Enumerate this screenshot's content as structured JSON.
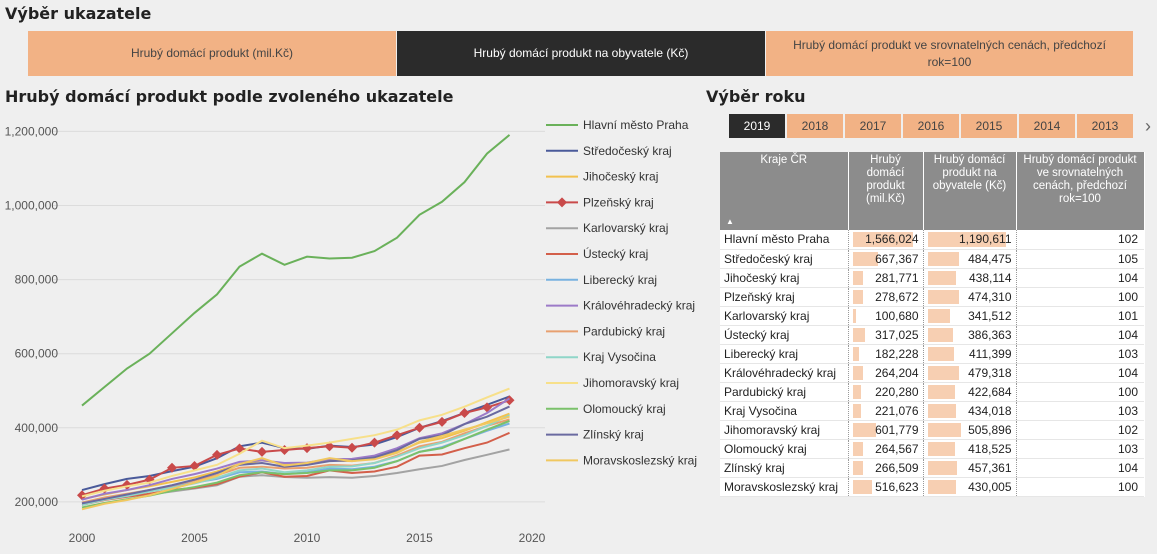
{
  "selector": {
    "title": "Výběr ukazatele",
    "buttons": [
      {
        "label": "Hrubý domácí produkt (mil.Kč)",
        "active": false
      },
      {
        "label": "Hrubý domácí produkt na obyvatele (Kč)",
        "active": true
      },
      {
        "label": "Hrubý domácí produkt ve srovnatelných cenách, předchozí rok=100",
        "active": false
      }
    ]
  },
  "chart_title": "Hrubý domácí produkt podle zvoleného ukazatele",
  "chart_data": {
    "type": "line",
    "x": [
      2000,
      2001,
      2002,
      2003,
      2004,
      2005,
      2006,
      2007,
      2008,
      2009,
      2010,
      2011,
      2012,
      2013,
      2014,
      2015,
      2016,
      2017,
      2018,
      2019
    ],
    "xlim": [
      2000,
      2020
    ],
    "xticks": [
      "2000",
      "2005",
      "2010",
      "2015",
      "2020"
    ],
    "ylim": [
      170000,
      1220000
    ],
    "yticks": [
      "200,000",
      "400,000",
      "600,000",
      "800,000",
      "1,000,000",
      "1,200,000"
    ],
    "ytick_values": [
      200000,
      400000,
      600000,
      800000,
      1000000,
      1200000
    ],
    "legend_position": "right",
    "series": [
      {
        "name": "Hlavní město Praha",
        "color": "#6ab15a",
        "values": [
          460000,
          510000,
          560000,
          600000,
          655000,
          710000,
          760000,
          835000,
          870000,
          840000,
          862000,
          857000,
          859000,
          877000,
          913000,
          975000,
          1010000,
          1063000,
          1140000,
          1190611
        ]
      },
      {
        "name": "Středočeský kraj",
        "color": "#4a5a9a",
        "values": [
          232000,
          248000,
          262000,
          270000,
          283000,
          295000,
          318000,
          350000,
          360000,
          345000,
          343000,
          352000,
          348000,
          355000,
          375000,
          400000,
          418000,
          440000,
          462000,
          484475
        ]
      },
      {
        "name": "Jihočeský kraj",
        "color": "#f2c14e",
        "values": [
          208000,
          220000,
          232000,
          242000,
          254000,
          266000,
          282000,
          302000,
          312000,
          303000,
          304000,
          312000,
          310000,
          318000,
          335000,
          360000,
          372000,
          392000,
          415000,
          438114
        ]
      },
      {
        "name": "Plzeňský kraj",
        "color": "#c94a4a",
        "marker": true,
        "values": [
          218000,
          236000,
          246000,
          260000,
          292000,
          297000,
          327000,
          344000,
          335000,
          340000,
          345000,
          350000,
          346000,
          360000,
          380000,
          400000,
          416000,
          440000,
          455000,
          474310
        ]
      },
      {
        "name": "Karlovarský kraj",
        "color": "#a3a3a3",
        "values": [
          198000,
          208000,
          215000,
          220000,
          228000,
          236000,
          245000,
          268000,
          272000,
          267000,
          265000,
          267000,
          265000,
          270000,
          278000,
          288000,
          297000,
          313000,
          327000,
          341512
        ]
      },
      {
        "name": "Ústecký kraj",
        "color": "#d35f4a",
        "values": [
          192000,
          205000,
          214000,
          222000,
          232000,
          238000,
          248000,
          268000,
          280000,
          268000,
          270000,
          285000,
          278000,
          282000,
          295000,
          325000,
          328000,
          345000,
          360000,
          386363
        ]
      },
      {
        "name": "Liberecký kraj",
        "color": "#78b2e0",
        "values": [
          198000,
          210000,
          220000,
          230000,
          240000,
          252000,
          262000,
          280000,
          282000,
          275000,
          280000,
          290000,
          288000,
          295000,
          310000,
          335000,
          348000,
          370000,
          392000,
          411399
        ]
      },
      {
        "name": "Královéhradecký kraj",
        "color": "#9c7ac8",
        "values": [
          206000,
          222000,
          232000,
          245000,
          262000,
          275000,
          290000,
          308000,
          312000,
          305000,
          306000,
          315000,
          316000,
          325000,
          345000,
          372000,
          385000,
          410000,
          440000,
          479318
        ]
      },
      {
        "name": "Pardubický kraj",
        "color": "#e8a070",
        "values": [
          198000,
          212000,
          222000,
          232000,
          244000,
          258000,
          272000,
          292000,
          295000,
          290000,
          292000,
          300000,
          298000,
          305000,
          325000,
          350000,
          362000,
          385000,
          405000,
          422684
        ]
      },
      {
        "name": "Kraj Vysočina",
        "color": "#8fd6c8",
        "values": [
          192000,
          206000,
          216000,
          228000,
          238000,
          250000,
          265000,
          285000,
          290000,
          280000,
          285000,
          295000,
          296000,
          305000,
          322000,
          345000,
          360000,
          380000,
          405000,
          434018
        ]
      },
      {
        "name": "Jihomoravský kraj",
        "color": "#f7e08a",
        "values": [
          215000,
          230000,
          242000,
          252000,
          270000,
          285000,
          300000,
          330000,
          365000,
          345000,
          352000,
          360000,
          370000,
          380000,
          395000,
          420000,
          435000,
          457000,
          482000,
          505896
        ]
      },
      {
        "name": "Olomoucký kraj",
        "color": "#7ac16a",
        "values": [
          185000,
          197000,
          207000,
          217000,
          230000,
          240000,
          252000,
          272000,
          280000,
          275000,
          278000,
          285000,
          285000,
          292000,
          310000,
          335000,
          345000,
          370000,
          395000,
          418525
        ]
      },
      {
        "name": "Zlínský kraj",
        "color": "#6a6aa0",
        "values": [
          196000,
          208000,
          220000,
          232000,
          245000,
          260000,
          278000,
          300000,
          305000,
          295000,
          300000,
          310000,
          312000,
          320000,
          340000,
          370000,
          380000,
          410000,
          430000,
          457361
        ]
      },
      {
        "name": "Moravskoslezský kraj",
        "color": "#f0c860",
        "values": [
          180000,
          195000,
          205000,
          218000,
          235000,
          252000,
          270000,
          302000,
          318000,
          298000,
          305000,
          318000,
          310000,
          315000,
          332000,
          362000,
          378000,
          395000,
          412000,
          430005
        ]
      }
    ]
  },
  "year_selector": {
    "title": "Výběr roku",
    "years": [
      {
        "label": "2019",
        "active": true
      },
      {
        "label": "2018",
        "active": false
      },
      {
        "label": "2017",
        "active": false
      },
      {
        "label": "2016",
        "active": false
      },
      {
        "label": "2015",
        "active": false
      },
      {
        "label": "2014",
        "active": false
      },
      {
        "label": "2013",
        "active": false
      }
    ],
    "next_icon": "›"
  },
  "table": {
    "headers": [
      "Kraje ČR",
      "Hrubý domácí produkt (mil.Kč)",
      "Hrubý domácí produkt na obyvatele (Kč)",
      "Hrubý domácí produkt ve srovnatelných cenách, předchozí rok=100"
    ],
    "sort_icon": "▲",
    "max_gdp": 1566024,
    "max_gdp_pc": 1190611,
    "rows": [
      {
        "region": "Hlavní město Praha",
        "gdp": "1,566,024",
        "gdp_v": 1566024,
        "gdp_pc": "1,190,611",
        "gdp_pc_v": 1190611,
        "idx": "102"
      },
      {
        "region": "Středočeský kraj",
        "gdp": "667,367",
        "gdp_v": 667367,
        "gdp_pc": "484,475",
        "gdp_pc_v": 484475,
        "idx": "105"
      },
      {
        "region": "Jihočeský kraj",
        "gdp": "281,771",
        "gdp_v": 281771,
        "gdp_pc": "438,114",
        "gdp_pc_v": 438114,
        "idx": "104"
      },
      {
        "region": "Plzeňský kraj",
        "gdp": "278,672",
        "gdp_v": 278672,
        "gdp_pc": "474,310",
        "gdp_pc_v": 474310,
        "idx": "100"
      },
      {
        "region": "Karlovarský kraj",
        "gdp": "100,680",
        "gdp_v": 100680,
        "gdp_pc": "341,512",
        "gdp_pc_v": 341512,
        "idx": "101"
      },
      {
        "region": "Ústecký kraj",
        "gdp": "317,025",
        "gdp_v": 317025,
        "gdp_pc": "386,363",
        "gdp_pc_v": 386363,
        "idx": "104"
      },
      {
        "region": "Liberecký kraj",
        "gdp": "182,228",
        "gdp_v": 182228,
        "gdp_pc": "411,399",
        "gdp_pc_v": 411399,
        "idx": "103"
      },
      {
        "region": "Královéhradecký kraj",
        "gdp": "264,204",
        "gdp_v": 264204,
        "gdp_pc": "479,318",
        "gdp_pc_v": 479318,
        "idx": "104"
      },
      {
        "region": "Pardubický kraj",
        "gdp": "220,280",
        "gdp_v": 220280,
        "gdp_pc": "422,684",
        "gdp_pc_v": 422684,
        "idx": "100"
      },
      {
        "region": "Kraj Vysočina",
        "gdp": "221,076",
        "gdp_v": 221076,
        "gdp_pc": "434,018",
        "gdp_pc_v": 434018,
        "idx": "103"
      },
      {
        "region": "Jihomoravský kraj",
        "gdp": "601,779",
        "gdp_v": 601779,
        "gdp_pc": "505,896",
        "gdp_pc_v": 505896,
        "idx": "102"
      },
      {
        "region": "Olomoucký kraj",
        "gdp": "264,567",
        "gdp_v": 264567,
        "gdp_pc": "418,525",
        "gdp_pc_v": 418525,
        "idx": "103"
      },
      {
        "region": "Zlínský kraj",
        "gdp": "266,509",
        "gdp_v": 266509,
        "gdp_pc": "457,361",
        "gdp_pc_v": 457361,
        "idx": "104"
      },
      {
        "region": "Moravskoslezský kraj",
        "gdp": "516,623",
        "gdp_v": 516623,
        "gdp_pc": "430,005",
        "gdp_pc_v": 430005,
        "idx": "100"
      }
    ]
  }
}
